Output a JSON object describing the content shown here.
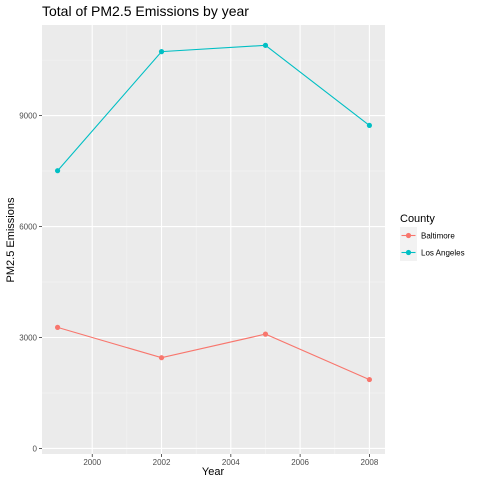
{
  "chart_data": {
    "type": "line",
    "title": "Total of PM2.5 Emissions by year",
    "xlabel": "Year",
    "ylabel": "PM2.5 Emissions",
    "x": [
      1999,
      2002,
      2005,
      2008
    ],
    "xlim": [
      1998.55,
      2008.45
    ],
    "ylim": [
      -150,
      11450
    ],
    "xticks": [
      2000,
      2002,
      2004,
      2006,
      2008
    ],
    "xtick_labels": [
      "2000",
      "2002",
      "2004",
      "2006",
      "2008"
    ],
    "yticks": [
      0,
      3000,
      6000,
      9000
    ],
    "ytick_labels": [
      "0",
      "3000",
      "6000",
      "9000"
    ],
    "grid": true,
    "legend_position": "right",
    "legend_title": "County",
    "series": [
      {
        "name": "Baltimore",
        "color": "#F8766D",
        "values": [
          3274.2,
          2453.9,
          3091.4,
          1862.3
        ]
      },
      {
        "name": "Los Angeles",
        "color": "#00BFC4",
        "values": [
          7510,
          10730,
          10900,
          8735
        ]
      }
    ]
  }
}
